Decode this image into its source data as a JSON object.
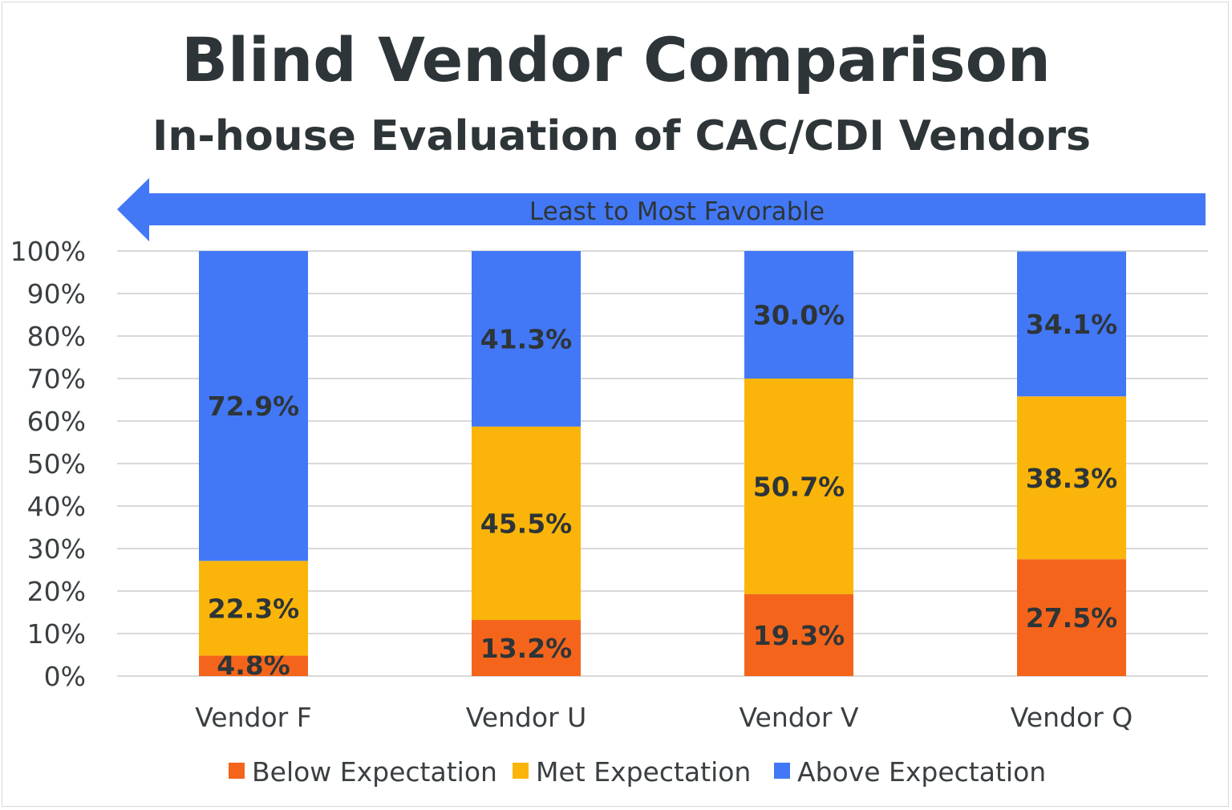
{
  "chart_data": {
    "type": "bar",
    "stacked": true,
    "title": "Blind Vendor Comparison",
    "subtitle": "In-house Evaluation of CAC/CDI Vendors",
    "annotation": "Least to Most Favorable",
    "categories": [
      "Vendor F",
      "Vendor U",
      "Vendor V",
      "Vendor Q"
    ],
    "series": [
      {
        "name": "Below Expectation",
        "color": "#f4651b",
        "values": [
          4.8,
          13.2,
          19.3,
          27.5
        ],
        "labels": [
          "4.8%",
          "13.2%",
          "19.3%",
          "27.5%"
        ]
      },
      {
        "name": "Met Expectation",
        "color": "#fbb50a",
        "values": [
          22.3,
          45.5,
          50.7,
          38.3
        ],
        "labels": [
          "22.3%",
          "45.5%",
          "50.7%",
          "38.3%"
        ]
      },
      {
        "name": "Above Expectation",
        "color": "#4278f6",
        "values": [
          72.9,
          41.3,
          30.0,
          34.1
        ],
        "labels": [
          "72.9%",
          "41.3%",
          "30.0%",
          "34.1%"
        ]
      }
    ],
    "ylim": [
      0,
      100
    ],
    "yticks": [
      "0%",
      "10%",
      "20%",
      "30%",
      "40%",
      "50%",
      "60%",
      "70%",
      "80%",
      "90%",
      "100%"
    ],
    "grid": true,
    "legend": "bottom"
  }
}
